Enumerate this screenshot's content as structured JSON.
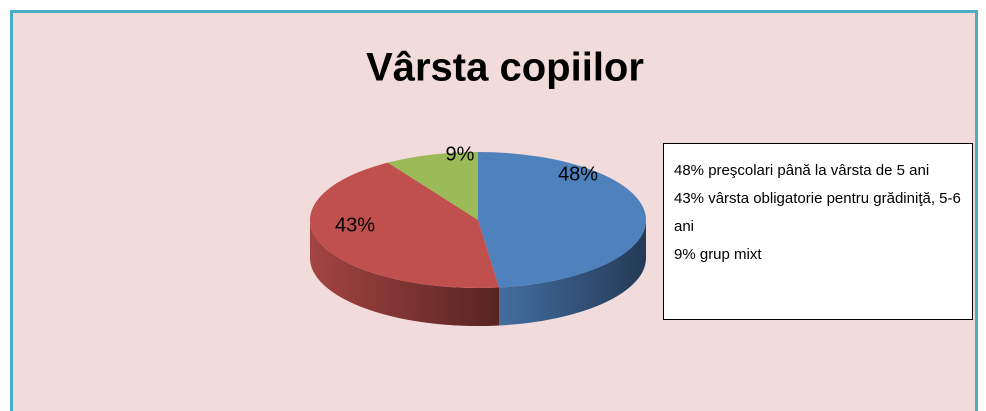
{
  "chart_data": {
    "type": "pie",
    "title": "Vârsta copiilor",
    "values": [
      48,
      43,
      9
    ],
    "value_labels": [
      "48%",
      "43%",
      "9%"
    ],
    "colors": [
      "#4f81bd",
      "#c0504d",
      "#9bbb59"
    ],
    "annotations": [
      "48%  preşcolari până la vârsta de 5 ani",
      "43% vârsta obligatorie pentru grădiniţă, 5-6 ani",
      "9% grup mixt"
    ]
  }
}
